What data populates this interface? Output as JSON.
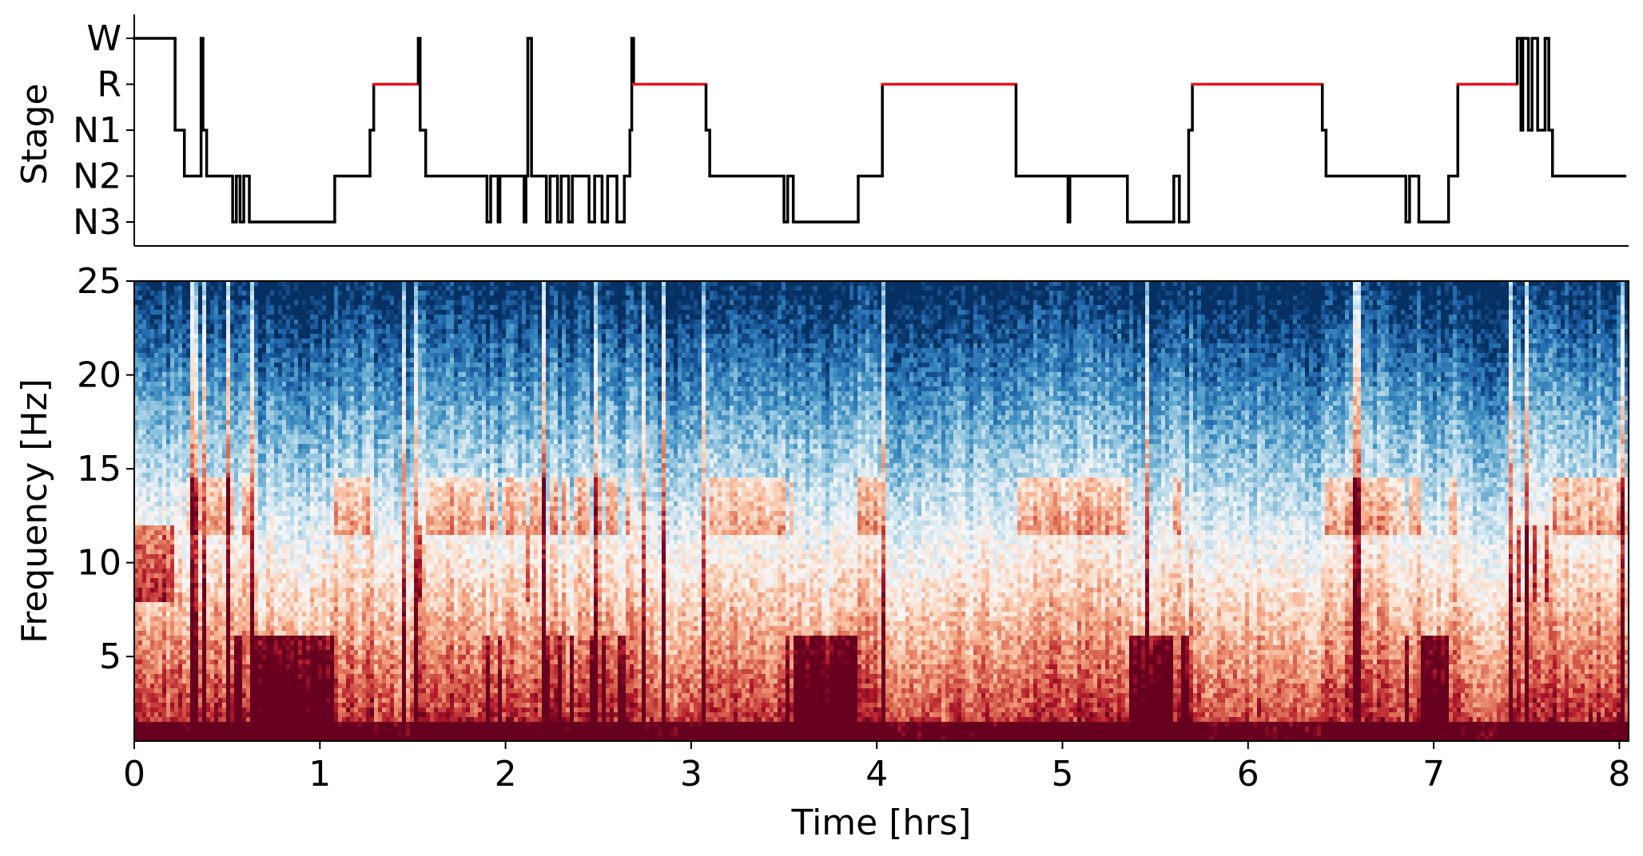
{
  "chart_data": [
    {
      "type": "line",
      "name": "hypnogram",
      "ylabel": "Stage",
      "stages": [
        "W",
        "R",
        "N1",
        "N2",
        "N3"
      ],
      "xlim": [
        0,
        8.05
      ],
      "rem_color": "#e8141b",
      "line_color": "#000000",
      "segments": [
        {
          "t": 0.0,
          "stage": "W"
        },
        {
          "t": 0.22,
          "stage": "N1"
        },
        {
          "t": 0.27,
          "stage": "N2"
        },
        {
          "t": 0.36,
          "stage": "W"
        },
        {
          "t": 0.37,
          "stage": "N1"
        },
        {
          "t": 0.39,
          "stage": "N2"
        },
        {
          "t": 0.53,
          "stage": "N3"
        },
        {
          "t": 0.55,
          "stage": "N2"
        },
        {
          "t": 0.57,
          "stage": "N3"
        },
        {
          "t": 0.59,
          "stage": "N2"
        },
        {
          "t": 0.62,
          "stage": "N3"
        },
        {
          "t": 1.08,
          "stage": "N2"
        },
        {
          "t": 1.27,
          "stage": "N1"
        },
        {
          "t": 1.29,
          "stage": "R"
        },
        {
          "t": 1.53,
          "stage": "W"
        },
        {
          "t": 1.54,
          "stage": "N1"
        },
        {
          "t": 1.57,
          "stage": "N2"
        },
        {
          "t": 1.9,
          "stage": "N3"
        },
        {
          "t": 1.92,
          "stage": "N2"
        },
        {
          "t": 1.96,
          "stage": "N3"
        },
        {
          "t": 1.97,
          "stage": "N2"
        },
        {
          "t": 2.1,
          "stage": "N3"
        },
        {
          "t": 2.11,
          "stage": "N2"
        },
        {
          "t": 2.12,
          "stage": "W"
        },
        {
          "t": 2.14,
          "stage": "N2"
        },
        {
          "t": 2.22,
          "stage": "N3"
        },
        {
          "t": 2.24,
          "stage": "N2"
        },
        {
          "t": 2.28,
          "stage": "N3"
        },
        {
          "t": 2.3,
          "stage": "N2"
        },
        {
          "t": 2.34,
          "stage": "N3"
        },
        {
          "t": 2.36,
          "stage": "N2"
        },
        {
          "t": 2.45,
          "stage": "N3"
        },
        {
          "t": 2.48,
          "stage": "N2"
        },
        {
          "t": 2.52,
          "stage": "N3"
        },
        {
          "t": 2.55,
          "stage": "N2"
        },
        {
          "t": 2.6,
          "stage": "N3"
        },
        {
          "t": 2.64,
          "stage": "N2"
        },
        {
          "t": 2.67,
          "stage": "N1"
        },
        {
          "t": 2.68,
          "stage": "W"
        },
        {
          "t": 2.69,
          "stage": "R"
        },
        {
          "t": 3.08,
          "stage": "N1"
        },
        {
          "t": 3.1,
          "stage": "N2"
        },
        {
          "t": 3.5,
          "stage": "N3"
        },
        {
          "t": 3.52,
          "stage": "N2"
        },
        {
          "t": 3.55,
          "stage": "N3"
        },
        {
          "t": 3.9,
          "stage": "N2"
        },
        {
          "t": 4.03,
          "stage": "R"
        },
        {
          "t": 4.75,
          "stage": "N2"
        },
        {
          "t": 5.03,
          "stage": "N3"
        },
        {
          "t": 5.04,
          "stage": "N2"
        },
        {
          "t": 5.35,
          "stage": "N3"
        },
        {
          "t": 5.6,
          "stage": "N2"
        },
        {
          "t": 5.63,
          "stage": "N3"
        },
        {
          "t": 5.68,
          "stage": "N1"
        },
        {
          "t": 5.7,
          "stage": "R"
        },
        {
          "t": 6.4,
          "stage": "N1"
        },
        {
          "t": 6.42,
          "stage": "N2"
        },
        {
          "t": 6.85,
          "stage": "N3"
        },
        {
          "t": 6.87,
          "stage": "N2"
        },
        {
          "t": 6.92,
          "stage": "N3"
        },
        {
          "t": 7.08,
          "stage": "N2"
        },
        {
          "t": 7.13,
          "stage": "R"
        },
        {
          "t": 7.45,
          "stage": "W"
        },
        {
          "t": 7.47,
          "stage": "N1"
        },
        {
          "t": 7.48,
          "stage": "W"
        },
        {
          "t": 7.51,
          "stage": "N1"
        },
        {
          "t": 7.53,
          "stage": "W"
        },
        {
          "t": 7.56,
          "stage": "N1"
        },
        {
          "t": 7.6,
          "stage": "W"
        },
        {
          "t": 7.62,
          "stage": "N1"
        },
        {
          "t": 7.64,
          "stage": "N2"
        },
        {
          "t": 8.03,
          "stage": "N2"
        }
      ]
    },
    {
      "type": "heatmap",
      "name": "spectrogram",
      "xlabel": "Time [hrs]",
      "ylabel": "Frequency [Hz]",
      "xlim": [
        0,
        8.05
      ],
      "ylim": [
        0.5,
        25
      ],
      "xticks": [
        0,
        1,
        2,
        3,
        4,
        5,
        6,
        7,
        8
      ],
      "yticks": [
        5,
        10,
        15,
        20,
        25
      ],
      "colormap": "RdBu_r",
      "colormap_stops": [
        "#053061",
        "#2166ac",
        "#4393c3",
        "#92c5de",
        "#d1e5f0",
        "#f7f7f7",
        "#fddbc7",
        "#f4a582",
        "#d6604d",
        "#b2182b",
        "#67001f"
      ]
    }
  ]
}
